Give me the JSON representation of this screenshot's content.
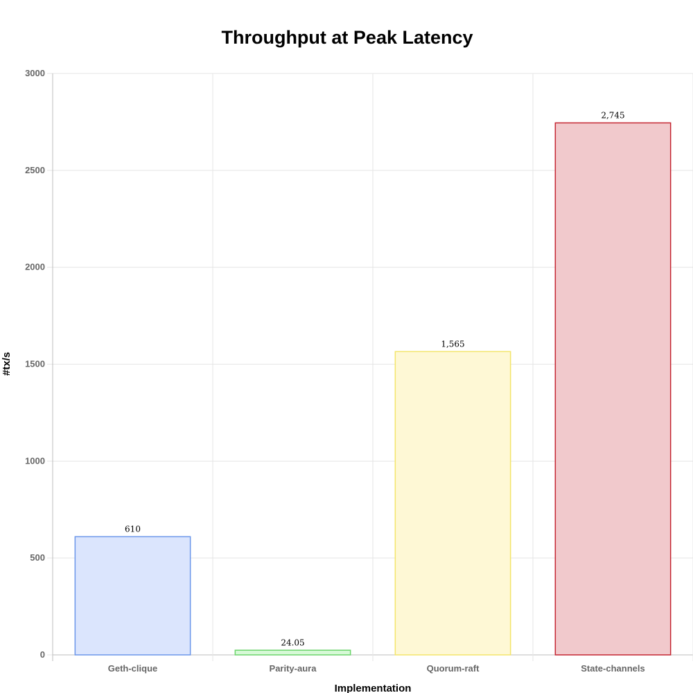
{
  "chart_data": {
    "type": "bar",
    "title": "Throughput at Peak Latency",
    "xlabel": "Implementation",
    "ylabel": "#tx/s",
    "categories": [
      "Geth-clique",
      "Parity-aura",
      "Quorum-raft",
      "State-channels"
    ],
    "values": [
      610,
      24.05,
      1565,
      2745
    ],
    "value_labels": [
      "610",
      "24.05",
      "1,565",
      "2,745"
    ],
    "ylim": [
      0,
      3000
    ],
    "yticks": [
      0,
      500,
      1000,
      1500,
      2000,
      2500,
      3000
    ],
    "grid": true,
    "legend": "none",
    "bar_fill_colors": [
      "#dbe5fd",
      "#d6f9d6",
      "#fef8d5",
      "#f1c9cc"
    ],
    "bar_stroke_colors": [
      "#6b96ea",
      "#6bd46b",
      "#f3e56a",
      "#c42430"
    ]
  }
}
